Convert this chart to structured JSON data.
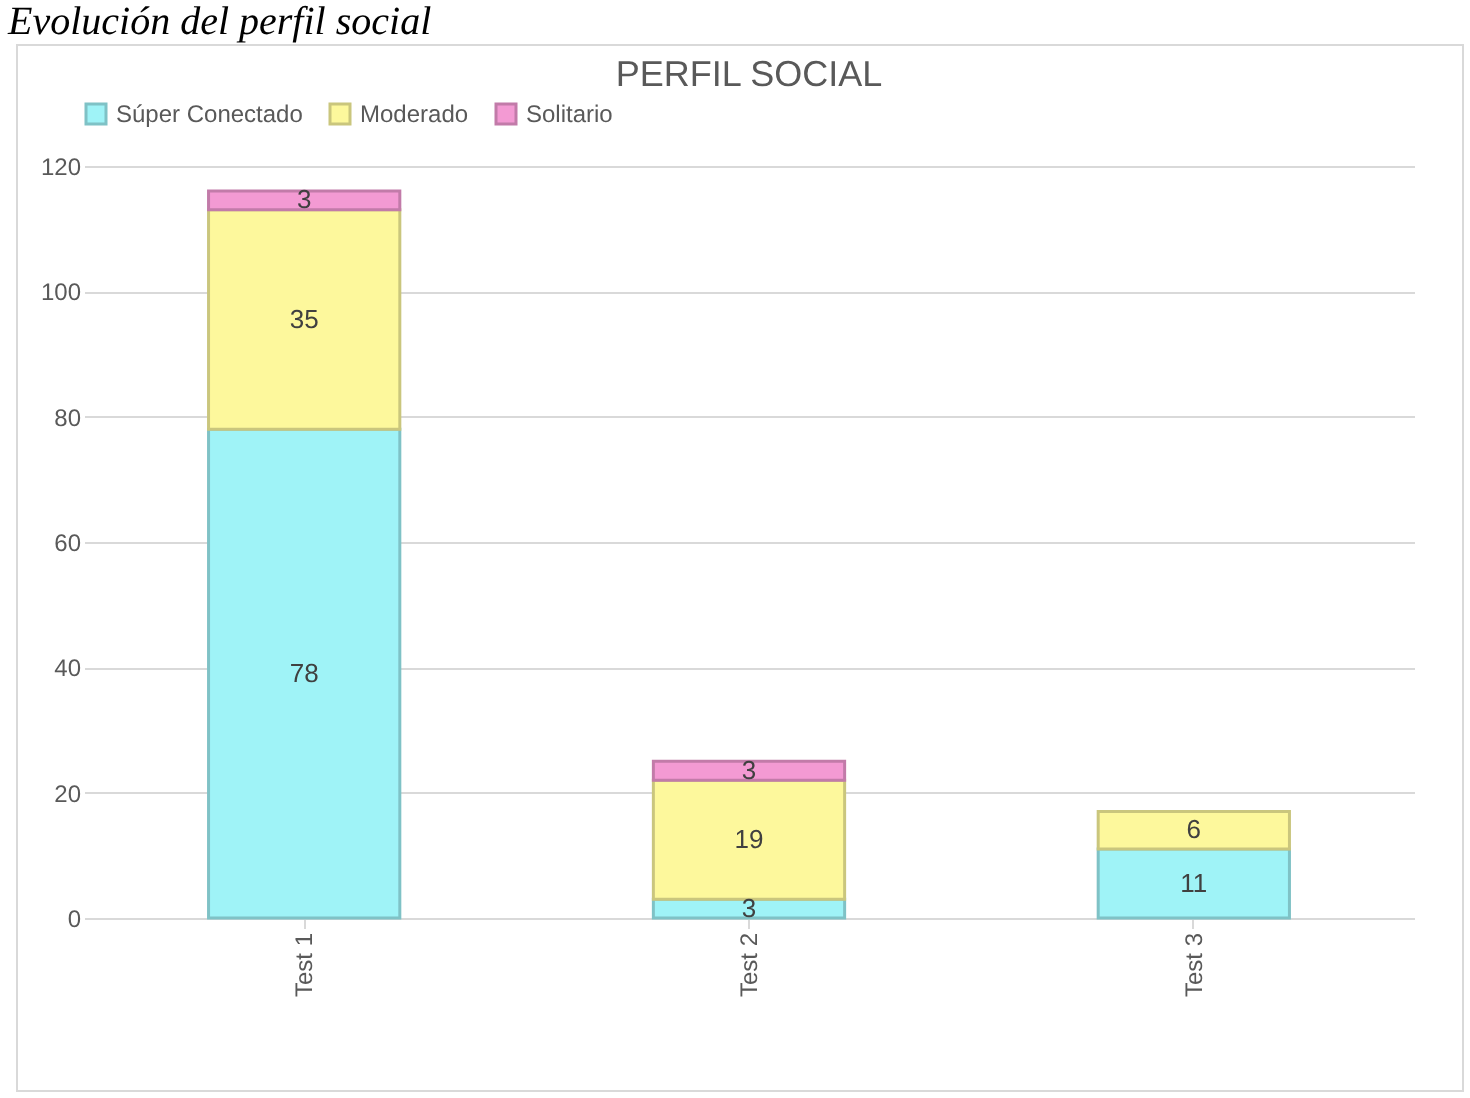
{
  "chart_data": {
    "type": "bar",
    "title": "PERFIL SOCIAL",
    "annotations": [
      "Evolución del perfil social"
    ],
    "categories": [
      "Test 1",
      "Test 2",
      "Test 3"
    ],
    "stacked": true,
    "data_labels": true,
    "legend": "top",
    "grid": "y",
    "ylim": [
      0,
      120
    ],
    "yticks": [
      0,
      20,
      40,
      60,
      80,
      100,
      120
    ],
    "series": [
      {
        "name": "Súper Conectado",
        "color": "#9ff3f7",
        "values": [
          78,
          3,
          11
        ]
      },
      {
        "name": "Moderado",
        "color": "#fdf89c",
        "values": [
          35,
          19,
          6
        ]
      },
      {
        "name": "Solitario",
        "color": "#f39ad3",
        "values": [
          3,
          3,
          null
        ]
      }
    ]
  }
}
